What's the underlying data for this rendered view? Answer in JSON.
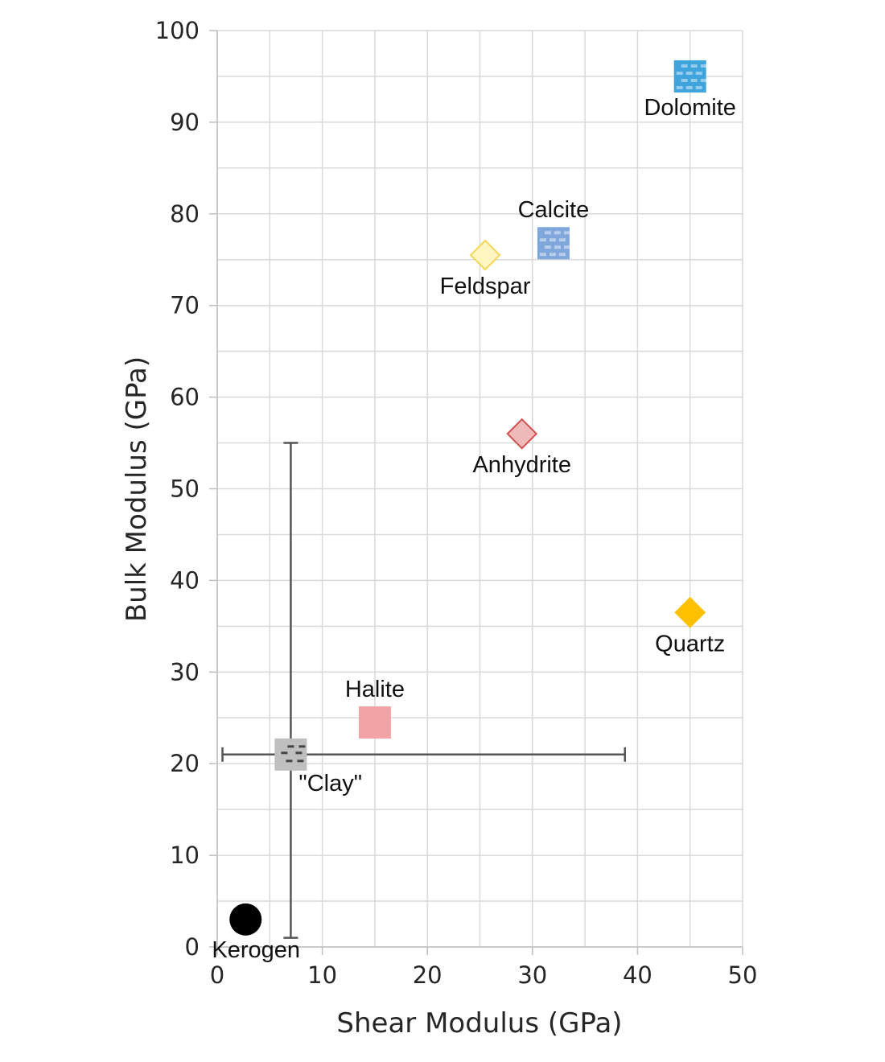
{
  "chart_data": {
    "type": "scatter",
    "xlabel": "Shear Modulus (GPa)",
    "ylabel": "Bulk Modulus (GPa)",
    "xlim": [
      0,
      50
    ],
    "ylim": [
      0,
      100
    ],
    "x_ticks": [
      0,
      10,
      20,
      30,
      40,
      50
    ],
    "y_ticks": [
      0,
      10,
      20,
      30,
      40,
      50,
      60,
      70,
      80,
      90,
      100
    ],
    "grid": true,
    "minor_grid": true,
    "points": [
      {
        "label": "Dolomite",
        "x": 45,
        "y": 95,
        "marker": "square-brick",
        "color": "#3fa3dc",
        "label_pos": "below"
      },
      {
        "label": "Calcite",
        "x": 32,
        "y": 76.8,
        "marker": "square-brick",
        "color": "#7fa7db",
        "label_pos": "above"
      },
      {
        "label": "Feldspar",
        "x": 25.5,
        "y": 75.5,
        "marker": "diamond",
        "color": "#fff6c2",
        "edge": "#f3d658",
        "label_pos": "below"
      },
      {
        "label": "Anhydrite",
        "x": 29,
        "y": 56,
        "marker": "diamond",
        "color": "#efb9b9",
        "edge": "#d05151",
        "label_pos": "below"
      },
      {
        "label": "Quartz",
        "x": 45,
        "y": 36.5,
        "marker": "diamond",
        "color": "#ffc000",
        "edge": "#ffc000",
        "label_pos": "below"
      },
      {
        "label": "Halite",
        "x": 15,
        "y": 24.5,
        "marker": "square",
        "color": "#f2a3a6",
        "label_pos": "above"
      },
      {
        "label": "\"Clay\"",
        "x": 7,
        "y": 21,
        "marker": "square-dash",
        "color": "#bfbfbf",
        "label_pos": "below-right",
        "x_error": [
          0.5,
          38.8
        ],
        "y_error": [
          1,
          55
        ]
      },
      {
        "label": "Kerogen",
        "x": 2.7,
        "y": 3,
        "marker": "circle",
        "color": "#000000",
        "label_pos": "below"
      }
    ]
  }
}
